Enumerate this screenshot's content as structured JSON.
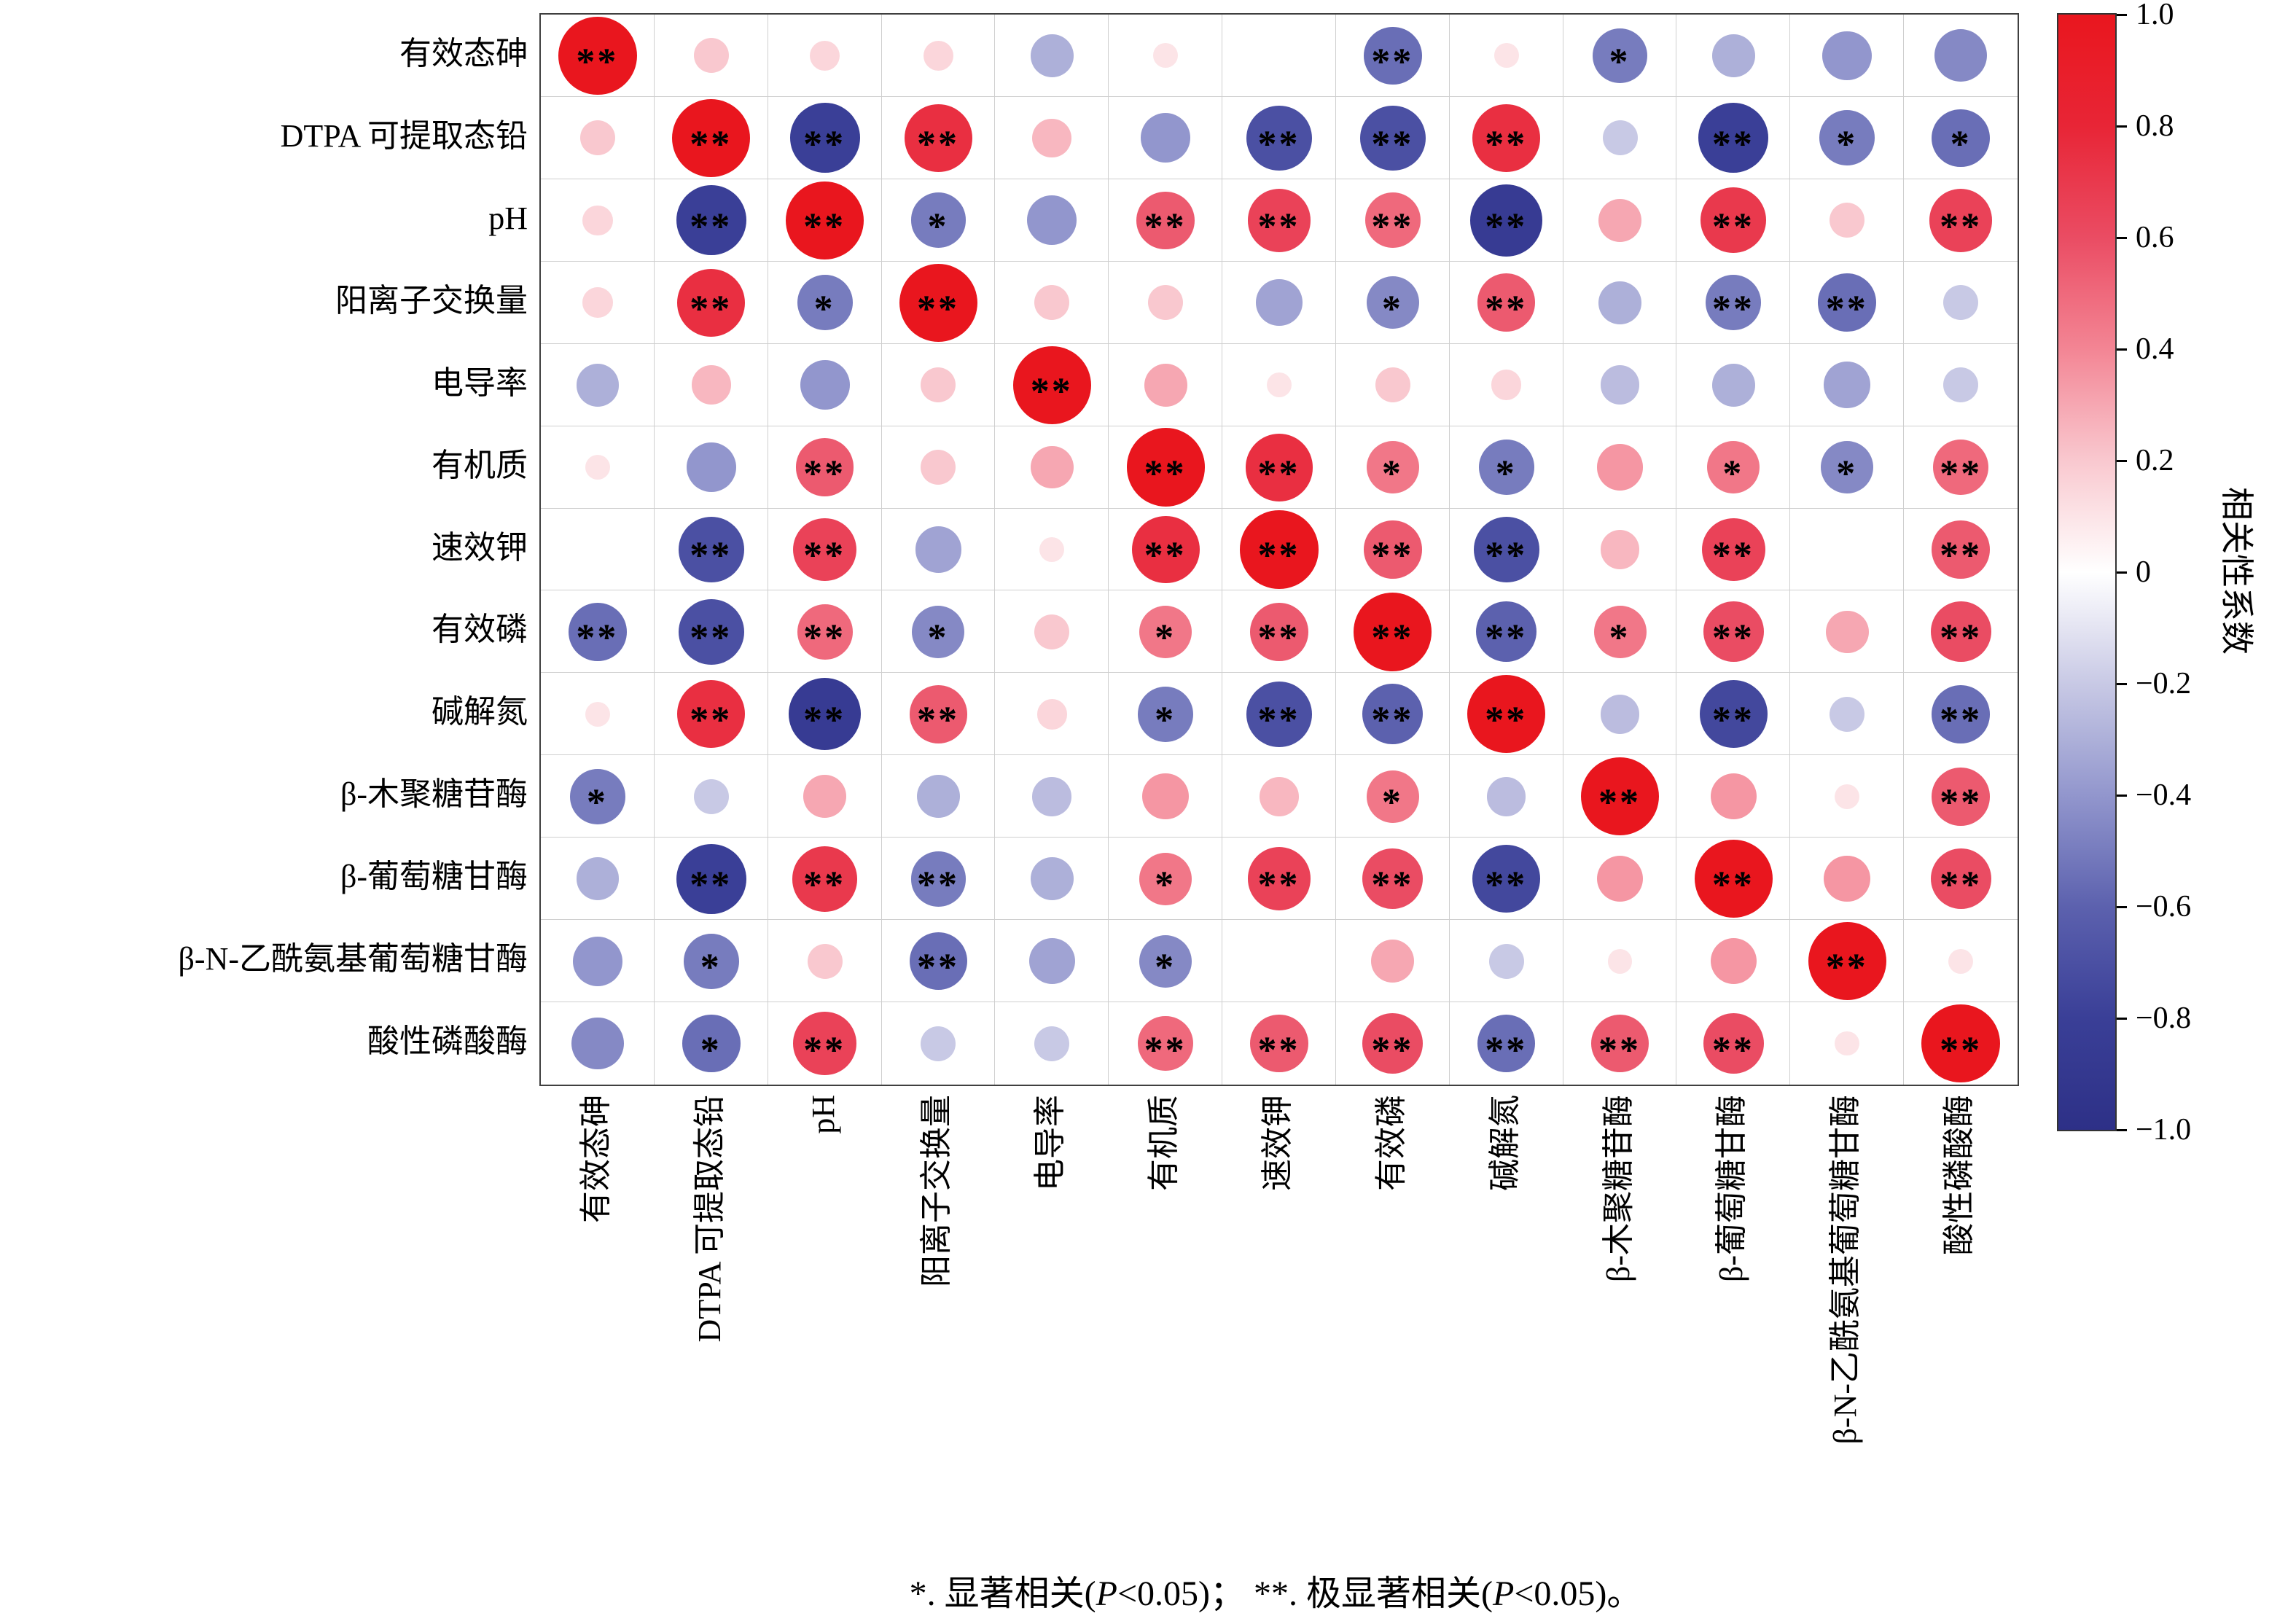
{
  "chart_data": {
    "type": "heatmap",
    "subtype": "correlogram-circles",
    "description": "13x13 correlation matrix; circle size = |r|, red = positive, blue = negative",
    "variables": [
      "有效态砷",
      "DTPA 可提取态铅",
      "pH",
      "阳离子交换量",
      "电导率",
      "有机质",
      "速效钾",
      "有效磷",
      "碱解氮",
      "β-木聚糖苷酶",
      "β-葡萄糖甘酶",
      "β-N-乙酰氨基葡萄糖甘酶",
      "酸性磷酸酶"
    ],
    "matrix": [
      [
        1,
        0.2,
        0.15,
        0.15,
        -0.3,
        0.1,
        0,
        -0.55,
        0.1,
        -0.5,
        -0.3,
        -0.4,
        -0.45
      ],
      [
        0.2,
        1,
        -0.8,
        0.75,
        0.25,
        -0.4,
        -0.7,
        -0.7,
        0.75,
        -0.2,
        -0.8,
        -0.5,
        -0.55
      ],
      [
        0.15,
        -0.8,
        1,
        -0.5,
        -0.4,
        0.55,
        0.65,
        0.5,
        -0.85,
        0.3,
        0.7,
        0.2,
        0.65
      ],
      [
        0.15,
        0.75,
        -0.5,
        1,
        0.2,
        0.2,
        -0.35,
        -0.45,
        0.55,
        -0.3,
        -0.5,
        -0.55,
        -0.2
      ],
      [
        -0.3,
        0.25,
        -0.4,
        0.2,
        1,
        0.3,
        0.1,
        0.2,
        0.15,
        -0.25,
        -0.3,
        -0.35,
        -0.2
      ],
      [
        0.1,
        -0.4,
        0.55,
        0.2,
        0.3,
        1,
        0.75,
        0.45,
        -0.5,
        0.35,
        0.45,
        -0.45,
        0.5
      ],
      [
        0,
        -0.7,
        0.65,
        -0.35,
        0.1,
        0.75,
        1,
        0.55,
        -0.7,
        0.25,
        0.65,
        0,
        0.55
      ],
      [
        -0.55,
        -0.7,
        0.5,
        -0.45,
        0.2,
        0.45,
        0.55,
        1,
        -0.6,
        0.45,
        0.6,
        0.3,
        0.6
      ],
      [
        0.1,
        0.75,
        -0.85,
        0.55,
        0.15,
        -0.5,
        -0.7,
        -0.6,
        1,
        -0.25,
        -0.75,
        -0.2,
        -0.55
      ],
      [
        -0.5,
        -0.2,
        0.3,
        -0.3,
        -0.25,
        0.35,
        0.25,
        0.45,
        -0.25,
        1,
        0.35,
        0.1,
        0.55
      ],
      [
        -0.3,
        -0.8,
        0.7,
        -0.5,
        -0.3,
        0.45,
        0.65,
        0.6,
        -0.75,
        0.35,
        1,
        0.35,
        0.6
      ],
      [
        -0.4,
        -0.5,
        0.2,
        -0.55,
        -0.35,
        -0.45,
        0,
        0.3,
        -0.2,
        0.1,
        0.35,
        1,
        0.1
      ],
      [
        -0.45,
        -0.55,
        0.65,
        -0.2,
        -0.2,
        0.5,
        0.55,
        0.6,
        -0.55,
        0.55,
        0.6,
        0.1,
        1
      ]
    ],
    "significance": [
      [
        "**",
        "",
        "",
        "",
        "",
        "",
        "",
        "**",
        "",
        "*",
        "",
        "",
        ""
      ],
      [
        "",
        "**",
        "**",
        "**",
        "",
        "",
        "**",
        "**",
        "**",
        "",
        "**",
        "*",
        "*"
      ],
      [
        "",
        "**",
        "**",
        "*",
        "",
        "**",
        "**",
        "**",
        "**",
        "",
        "**",
        "",
        "**"
      ],
      [
        "",
        "**",
        "*",
        "**",
        "",
        "",
        "",
        "*",
        "**",
        "",
        "**",
        "**",
        ""
      ],
      [
        "",
        "",
        "",
        "",
        "**",
        "",
        "",
        "",
        "",
        "",
        "",
        "",
        ""
      ],
      [
        "",
        "",
        "**",
        "",
        "",
        "**",
        "**",
        "*",
        "*",
        "",
        "*",
        "*",
        "**"
      ],
      [
        "",
        "**",
        "**",
        "",
        "",
        "**",
        "**",
        "**",
        "**",
        "",
        "**",
        "",
        "**"
      ],
      [
        "**",
        "**",
        "**",
        "*",
        "",
        "*",
        "**",
        "**",
        "**",
        "*",
        "**",
        "",
        "**"
      ],
      [
        "",
        "**",
        "**",
        "**",
        "",
        "*",
        "**",
        "**",
        "**",
        "",
        "**",
        "",
        "**"
      ],
      [
        "*",
        "",
        "",
        "",
        "",
        "",
        "",
        "*",
        "",
        "**",
        "",
        "",
        "**"
      ],
      [
        "",
        "**",
        "**",
        "**",
        "",
        "*",
        "**",
        "**",
        "**",
        "",
        "**",
        "",
        "**"
      ],
      [
        "",
        "*",
        "",
        "**",
        "",
        "*",
        "",
        "",
        "",
        "",
        "",
        "**",
        ""
      ],
      [
        "",
        "*",
        "**",
        "",
        "",
        "**",
        "**",
        "**",
        "**",
        "**",
        "**",
        "",
        "**"
      ]
    ],
    "colorbar": {
      "label": "相关性系数",
      "min": -1,
      "max": 1,
      "tick_values": [
        1,
        0.8,
        0.6,
        0.4,
        0.2,
        0,
        -0.2,
        -0.4,
        -0.6,
        -0.8,
        -1
      ],
      "tick_labels": [
        "1.0",
        "0.8",
        "0.6",
        "0.4",
        "0.2",
        "0",
        "−0.2",
        "−0.4",
        "−0.6",
        "−0.8",
        "−1.0"
      ],
      "color_positive_max": "#e9161e",
      "color_zero": "#ffffff",
      "color_negative_min": "#2d3087"
    },
    "legend_note_parts": [
      {
        "text": "*. 显著相关(",
        "italic": false
      },
      {
        "text": "P",
        "italic": true
      },
      {
        "text": "<0.05)；  **. 极显著相关(",
        "italic": false
      },
      {
        "text": "P",
        "italic": true
      },
      {
        "text": "<0.05)。",
        "italic": false
      }
    ],
    "grid_on": true,
    "legend_position": "right"
  }
}
